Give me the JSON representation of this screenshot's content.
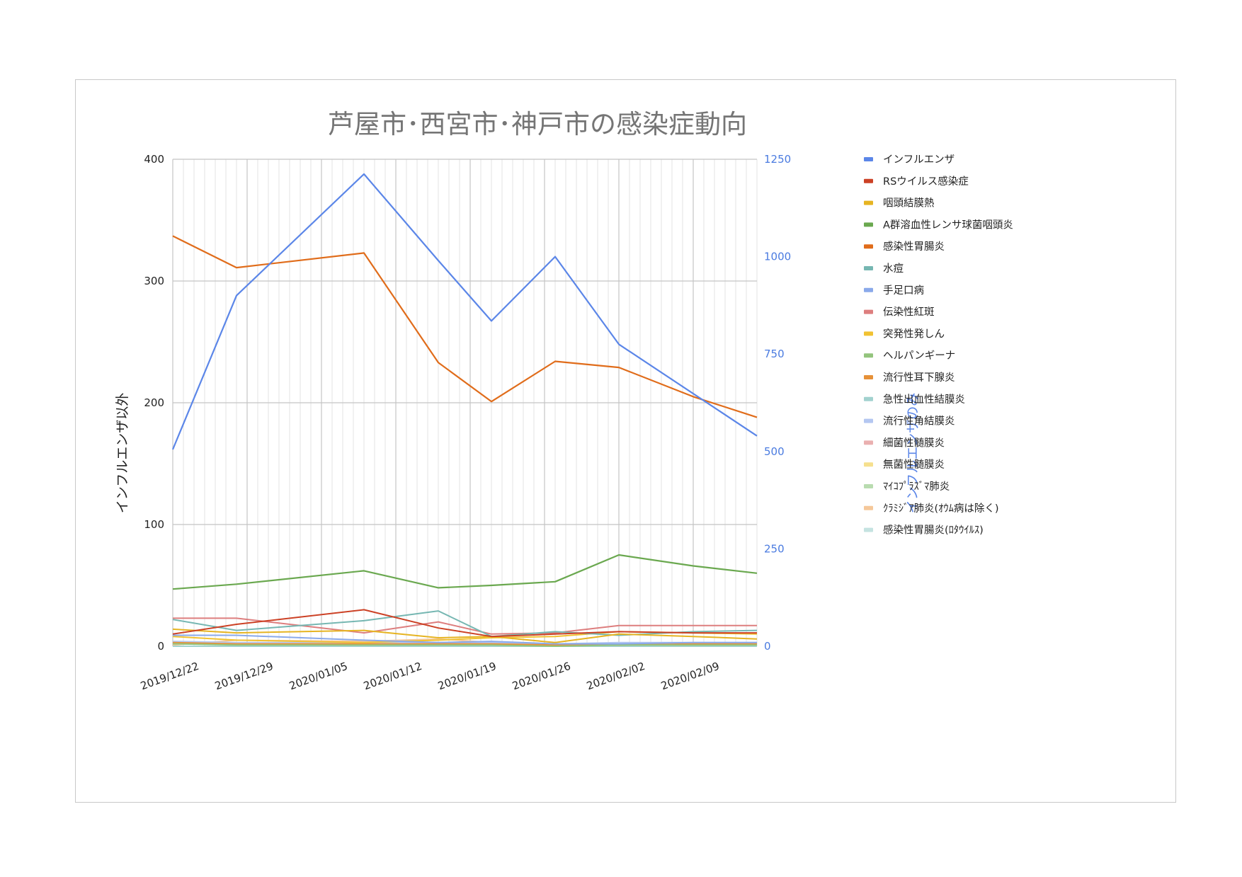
{
  "chart_data": {
    "type": "line",
    "title": "芦屋市･西宮市･神戸市の感染症動向",
    "ylabel_left": "インフルエンザ以外",
    "ylabel_right": "インフルエンザのみ",
    "ylim_left": [
      0,
      400
    ],
    "ylim_right": [
      0,
      1250
    ],
    "yticks_left": [
      "0",
      "100",
      "200",
      "300",
      "400"
    ],
    "yticks_right": [
      "0",
      "250",
      "500",
      "750",
      "1000",
      "1250"
    ],
    "xlim": [
      "2019/12/22",
      "2020/02/15"
    ],
    "x_tick_labels": [
      "2019/12/22",
      "2019/12/29",
      "2020/01/05",
      "2020/01/12",
      "2020/01/19",
      "2020/01/26",
      "2020/02/02",
      "2020/02/09"
    ],
    "x": [
      "2019/12/22",
      "2019/12/28",
      "2020/01/09",
      "2020/01/16",
      "2020/01/21",
      "2020/01/27",
      "2020/02/02",
      "2020/02/09"
    ],
    "x_last": "2020/02/15",
    "grid": true,
    "legend_position": "right",
    "series": [
      {
        "name": "インフルエンザ",
        "axis": "right",
        "color": "#5b86e8",
        "x": [
          "2019/12/22",
          "2019/12/28",
          "2020/01/09",
          "2020/01/16",
          "2020/01/21",
          "2020/01/27",
          "2020/02/02",
          "2020/02/09",
          "2020/02/15"
        ],
        "values": [
          505,
          900,
          1212,
          990,
          835,
          1000,
          775,
          null,
          540
        ]
      },
      {
        "name": "RSウイルス感染症",
        "axis": "left",
        "color": "#cc4125",
        "values": [
          10,
          18,
          30,
          15,
          8,
          10,
          12,
          11
        ],
        "last": 11
      },
      {
        "name": "咽頭結膜熱",
        "axis": "left",
        "color": "#e6b422",
        "values": [
          14,
          11,
          13,
          7,
          8,
          3,
          10,
          8
        ],
        "last": 6
      },
      {
        "name": "A群溶血性レンサ球菌咽頭炎",
        "axis": "left",
        "color": "#6aa84f",
        "values": [
          47,
          51,
          62,
          48,
          50,
          53,
          75,
          66
        ],
        "last": 60
      },
      {
        "name": "感染性胃腸炎",
        "axis": "left",
        "color": "#e06c1a",
        "values": [
          337,
          311,
          323,
          233,
          201,
          234,
          229,
          205
        ],
        "last": 188
      },
      {
        "name": "水痘",
        "axis": "left",
        "color": "#76b7b2",
        "values": [
          22,
          13,
          21,
          29,
          8,
          12,
          9,
          12
        ],
        "last": 13
      },
      {
        "name": "手足口病",
        "axis": "left",
        "color": "#8aa9ea",
        "values": [
          9,
          9,
          5,
          3,
          4,
          2,
          2,
          3
        ],
        "last": 3
      },
      {
        "name": "伝染性紅斑",
        "axis": "left",
        "color": "#dd7e7e",
        "values": [
          23,
          23,
          11,
          20,
          10,
          11,
          17,
          17
        ],
        "last": 17
      },
      {
        "name": "突発性発しん",
        "axis": "left",
        "color": "#f1c232",
        "values": [
          8,
          5,
          3,
          5,
          7,
          8,
          12,
          11
        ],
        "last": 10
      },
      {
        "name": "ヘルパンギーナ",
        "axis": "left",
        "color": "#93c47d",
        "values": [
          2,
          1,
          1,
          1,
          1,
          0,
          1,
          1
        ],
        "last": 1
      },
      {
        "name": "流行性耳下腺炎",
        "axis": "left",
        "color": "#e69138",
        "values": [
          3,
          2,
          2,
          2,
          2,
          1,
          1,
          2
        ],
        "last": 2
      },
      {
        "name": "急性出血性結膜炎",
        "axis": "left",
        "color": "#a2d2cf",
        "values": [
          0,
          0,
          0,
          0,
          0,
          0,
          0,
          0
        ],
        "last": 0
      },
      {
        "name": "流行性角結膜炎",
        "axis": "left",
        "color": "#b4c7f1",
        "values": [
          4,
          3,
          3,
          3,
          3,
          2,
          3,
          3
        ],
        "last": 3
      },
      {
        "name": "細菌性髄膜炎",
        "axis": "left",
        "color": "#eab0b0",
        "values": [
          0,
          0,
          0,
          0,
          0,
          0,
          0,
          0
        ],
        "last": 0
      },
      {
        "name": "無菌性髄膜炎",
        "axis": "left",
        "color": "#f6e08e",
        "values": [
          0,
          0,
          0,
          0,
          0,
          0,
          0,
          0
        ],
        "last": 0
      },
      {
        "name": "ﾏｲｺﾌﾟﾗｽﾞﾏ肺炎",
        "axis": "left",
        "color": "#b9dcb0",
        "values": [
          2,
          2,
          1,
          1,
          1,
          1,
          1,
          1
        ],
        "last": 1
      },
      {
        "name": "ｸﾗﾐｼﾞｱ肺炎(ｵｳﾑ病は除く)",
        "axis": "left",
        "color": "#f5c89a",
        "values": [
          1,
          5,
          4,
          6,
          3,
          1,
          1,
          1
        ],
        "last": 1
      },
      {
        "name": "感染性胃腸炎(ﾛﾀｳｲﾙｽ)",
        "axis": "left",
        "color": "#c5e3e1",
        "values": [
          0,
          0,
          0,
          0,
          0,
          0,
          0,
          0
        ],
        "last": 0
      }
    ]
  }
}
